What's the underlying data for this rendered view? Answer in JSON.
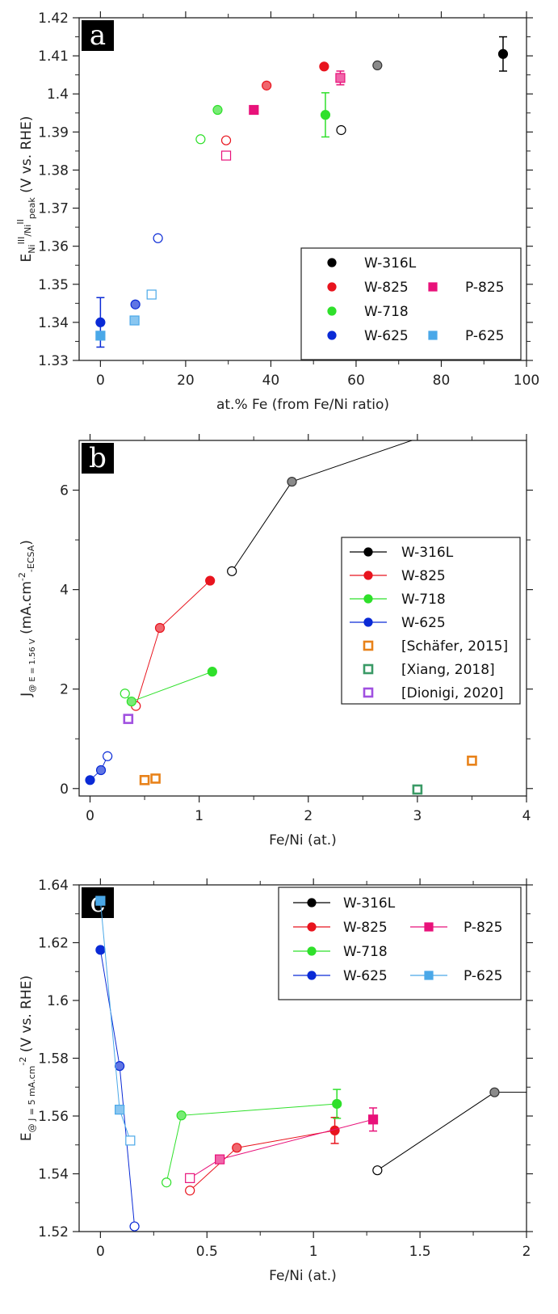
{
  "chart_data": [
    {
      "panel": "a",
      "type": "scatter",
      "xlabel": "at.% Fe (from Fe/Ni ratio)",
      "ylabel": {
        "main": "E",
        "sub1": "Ni",
        "sup1": "III",
        "mid": "/Ni",
        "sup2": "II",
        "sub2": "peak",
        "rest": " (V vs. RHE)"
      },
      "xlim": [
        -5,
        100
      ],
      "ylim": [
        1.33,
        1.42
      ],
      "xticks": [
        "0",
        "20",
        "40",
        "60",
        "80",
        "100"
      ],
      "yticks": [
        "1.33",
        "1.34",
        "1.35",
        "1.36",
        "1.37",
        "1.38",
        "1.39",
        "1.4",
        "1.41",
        "1.42"
      ],
      "legend_position": "bottom-right",
      "legend": [
        {
          "label": "W-316L",
          "color": "#000000",
          "marker": "circle"
        },
        {
          "label": "W-825",
          "color": "#e8141e",
          "marker": "circle"
        },
        {
          "label": "P-825",
          "color": "#e8127a",
          "marker": "square"
        },
        {
          "label": "W-718",
          "color": "#2fe02b",
          "marker": "circle"
        },
        {
          "label": "W-625",
          "color": "#0a2ad6",
          "marker": "circle"
        },
        {
          "label": "P-625",
          "color": "#4aa8e8",
          "marker": "square"
        }
      ],
      "series": [
        {
          "name": "W-316L",
          "color": "#000000",
          "points": [
            {
              "x": 94.5,
              "y": 1.4105,
              "fill": "solid",
              "marker": "circle",
              "err": 0.0045
            },
            {
              "x": 65,
              "y": 1.4075,
              "fill": "gray",
              "marker": "circle"
            },
            {
              "x": 56.5,
              "y": 1.3905,
              "fill": "open",
              "marker": "circle"
            }
          ]
        },
        {
          "name": "W-825",
          "color": "#e8141e",
          "points": [
            {
              "x": 52.5,
              "y": 1.4072,
              "fill": "solid",
              "marker": "circle"
            },
            {
              "x": 39,
              "y": 1.4022,
              "fill": "light",
              "marker": "circle"
            },
            {
              "x": 29.5,
              "y": 1.3878,
              "fill": "open",
              "marker": "circle"
            }
          ]
        },
        {
          "name": "P-825",
          "color": "#e8127a",
          "points": [
            {
              "x": 56.3,
              "y": 1.4042,
              "fill": "light",
              "marker": "square",
              "err": 0.0018
            },
            {
              "x": 36,
              "y": 1.3958,
              "fill": "solid",
              "marker": "square"
            },
            {
              "x": 29.5,
              "y": 1.3838,
              "fill": "open",
              "marker": "square"
            }
          ]
        },
        {
          "name": "W-718",
          "color": "#2fe02b",
          "points": [
            {
              "x": 52.8,
              "y": 1.3945,
              "fill": "solid",
              "marker": "circle",
              "err": 0.0058
            },
            {
              "x": 27.5,
              "y": 1.3958,
              "fill": "light",
              "marker": "circle"
            },
            {
              "x": 23.5,
              "y": 1.3881,
              "fill": "open",
              "marker": "circle"
            }
          ]
        },
        {
          "name": "W-625",
          "color": "#0a2ad6",
          "points": [
            {
              "x": 0,
              "y": 1.34,
              "fill": "solid",
              "marker": "circle",
              "err": 0.0065
            },
            {
              "x": 8.2,
              "y": 1.3447,
              "fill": "light",
              "marker": "circle"
            },
            {
              "x": 13.5,
              "y": 1.3621,
              "fill": "open",
              "marker": "circle"
            }
          ]
        },
        {
          "name": "P-625",
          "color": "#4aa8e8",
          "points": [
            {
              "x": 0,
              "y": 1.3365,
              "fill": "solid",
              "marker": "square"
            },
            {
              "x": 8,
              "y": 1.3405,
              "fill": "light",
              "marker": "square"
            },
            {
              "x": 12,
              "y": 1.3473,
              "fill": "open",
              "marker": "square"
            }
          ]
        }
      ]
    },
    {
      "panel": "b",
      "type": "line",
      "xlabel": "Fe/Ni (at.)",
      "ylabel": {
        "main": "J",
        "sub1": "@ E = 1.56 V",
        "rest": " (mA.cm",
        "sup": "-2",
        "sub2": "-ECSA",
        "end": ")"
      },
      "xlim": [
        -0.1,
        4
      ],
      "ylim": [
        -0.15,
        7
      ],
      "xticks": [
        "0",
        "1",
        "2",
        "3",
        "4"
      ],
      "yticks": [
        "0",
        "2",
        "4",
        "6"
      ],
      "legend_position": "center-right",
      "legend": [
        {
          "label": "W-316L",
          "color": "#000000",
          "marker": "circle",
          "line": true
        },
        {
          "label": "W-825",
          "color": "#e8141e",
          "marker": "circle",
          "line": true
        },
        {
          "label": "W-718",
          "color": "#2fe02b",
          "marker": "circle",
          "line": true
        },
        {
          "label": "W-625",
          "color": "#0a2ad6",
          "marker": "circle",
          "line": true
        },
        {
          "label": "[Schäfer, 2015]",
          "color": "#e8821a",
          "marker": "square-open",
          "line": false
        },
        {
          "label": "[Xiang, 2018]",
          "color": "#3a9a66",
          "marker": "square-open",
          "line": false
        },
        {
          "label": "[Dionigi, 2020]",
          "color": "#a050e0",
          "marker": "square-open",
          "line": false
        }
      ],
      "series": [
        {
          "name": "W-316L",
          "color": "#000000",
          "line": true,
          "points": [
            {
              "x": 1.3,
              "y": 4.37,
              "fill": "open",
              "marker": "circle"
            },
            {
              "x": 1.85,
              "y": 6.17,
              "fill": "gray",
              "marker": "circle"
            },
            {
              "x": 2.95,
              "y": 7.0,
              "fill": "none",
              "marker": "none"
            }
          ]
        },
        {
          "name": "W-825",
          "color": "#e8141e",
          "line": true,
          "points": [
            {
              "x": 0.42,
              "y": 1.66,
              "fill": "open",
              "marker": "circle"
            },
            {
              "x": 0.64,
              "y": 3.23,
              "fill": "light",
              "marker": "circle"
            },
            {
              "x": 1.1,
              "y": 4.18,
              "fill": "solid",
              "marker": "circle"
            }
          ]
        },
        {
          "name": "W-718",
          "color": "#2fe02b",
          "line": true,
          "points": [
            {
              "x": 0.32,
              "y": 1.91,
              "fill": "open",
              "marker": "circle"
            },
            {
              "x": 0.38,
              "y": 1.75,
              "fill": "light",
              "marker": "circle"
            },
            {
              "x": 1.12,
              "y": 2.35,
              "fill": "solid",
              "marker": "circle"
            }
          ]
        },
        {
          "name": "W-625",
          "color": "#0a2ad6",
          "line": true,
          "points": [
            {
              "x": 0.0,
              "y": 0.17,
              "fill": "solid",
              "marker": "circle"
            },
            {
              "x": 0.1,
              "y": 0.37,
              "fill": "light",
              "marker": "circle"
            },
            {
              "x": 0.16,
              "y": 0.65,
              "fill": "open",
              "marker": "circle"
            }
          ]
        },
        {
          "name": "[Schäfer, 2015]",
          "color": "#e8821a",
          "line": false,
          "points": [
            {
              "x": 0.5,
              "y": 0.17,
              "fill": "open",
              "marker": "square"
            },
            {
              "x": 0.6,
              "y": 0.2,
              "fill": "open",
              "marker": "square"
            },
            {
              "x": 3.5,
              "y": 0.56,
              "fill": "open",
              "marker": "square"
            }
          ]
        },
        {
          "name": "[Xiang, 2018]",
          "color": "#3a9a66",
          "line": false,
          "points": [
            {
              "x": 3.0,
              "y": -0.02,
              "fill": "open",
              "marker": "square"
            }
          ]
        },
        {
          "name": "[Dionigi, 2020]",
          "color": "#a050e0",
          "line": false,
          "points": [
            {
              "x": 0.35,
              "y": 1.4,
              "fill": "open",
              "marker": "square"
            }
          ]
        }
      ]
    },
    {
      "panel": "c",
      "type": "line",
      "xlabel": "Fe/Ni (at.)",
      "ylabel": {
        "main": "E",
        "sub1": "@ J = 5 mA.cm",
        "sup": "-2",
        "rest": " (V vs. RHE)"
      },
      "xlim": [
        -0.1,
        2
      ],
      "ylim": [
        1.52,
        1.64
      ],
      "xticks": [
        "0",
        "0.5",
        "1",
        "1.5",
        "2"
      ],
      "yticks": [
        "1.52",
        "1.54",
        "1.56",
        "1.58",
        "1.6",
        "1.62",
        "1.64"
      ],
      "legend_position": "top-right",
      "legend": [
        {
          "label": "W-316L",
          "color": "#000000",
          "marker": "circle",
          "line": true
        },
        {
          "label": "W-825",
          "color": "#e8141e",
          "marker": "circle",
          "line": true
        },
        {
          "label": "P-825",
          "color": "#e8127a",
          "marker": "square",
          "line": true
        },
        {
          "label": "W-718",
          "color": "#2fe02b",
          "marker": "circle",
          "line": true
        },
        {
          "label": "W-625",
          "color": "#0a2ad6",
          "marker": "circle",
          "line": true
        },
        {
          "label": "P-625",
          "color": "#4aa8e8",
          "marker": "square",
          "line": true
        }
      ],
      "series": [
        {
          "name": "W-316L",
          "color": "#000000",
          "line": true,
          "points": [
            {
              "x": 1.3,
              "y": 1.5412,
              "fill": "open",
              "marker": "circle"
            },
            {
              "x": 1.85,
              "y": 1.5682,
              "fill": "gray",
              "marker": "circle"
            },
            {
              "x": 2.0,
              "y": 1.5682,
              "fill": "none",
              "marker": "none"
            }
          ]
        },
        {
          "name": "W-825",
          "color": "#e8141e",
          "line": true,
          "points": [
            {
              "x": 0.42,
              "y": 1.5342,
              "fill": "open",
              "marker": "circle"
            },
            {
              "x": 0.64,
              "y": 1.549,
              "fill": "light",
              "marker": "circle"
            },
            {
              "x": 1.1,
              "y": 1.555,
              "fill": "solid",
              "marker": "circle",
              "err": 0.0045
            }
          ]
        },
        {
          "name": "P-825",
          "color": "#e8127a",
          "line": true,
          "points": [
            {
              "x": 0.42,
              "y": 1.5385,
              "fill": "open",
              "marker": "square"
            },
            {
              "x": 0.56,
              "y": 1.545,
              "fill": "light",
              "marker": "square"
            },
            {
              "x": 1.28,
              "y": 1.5588,
              "fill": "solid",
              "marker": "square",
              "err": 0.004
            }
          ]
        },
        {
          "name": "W-718",
          "color": "#2fe02b",
          "line": true,
          "points": [
            {
              "x": 0.31,
              "y": 1.537,
              "fill": "open",
              "marker": "circle"
            },
            {
              "x": 0.38,
              "y": 1.5602,
              "fill": "light",
              "marker": "circle"
            },
            {
              "x": 1.11,
              "y": 1.5642,
              "fill": "solid",
              "marker": "circle",
              "err": 0.005
            }
          ]
        },
        {
          "name": "W-625",
          "color": "#0a2ad6",
          "line": true,
          "points": [
            {
              "x": 0.0,
              "y": 1.6175,
              "fill": "solid",
              "marker": "circle"
            },
            {
              "x": 0.09,
              "y": 1.5773,
              "fill": "light",
              "marker": "circle"
            },
            {
              "x": 0.16,
              "y": 1.5218,
              "fill": "open",
              "marker": "circle"
            }
          ]
        },
        {
          "name": "P-625",
          "color": "#4aa8e8",
          "line": true,
          "points": [
            {
              "x": 0.0,
              "y": 1.6345,
              "fill": "solid",
              "marker": "square"
            },
            {
              "x": 0.09,
              "y": 1.5622,
              "fill": "light",
              "marker": "square"
            },
            {
              "x": 0.14,
              "y": 1.5515,
              "fill": "open",
              "marker": "square"
            }
          ]
        }
      ]
    }
  ]
}
